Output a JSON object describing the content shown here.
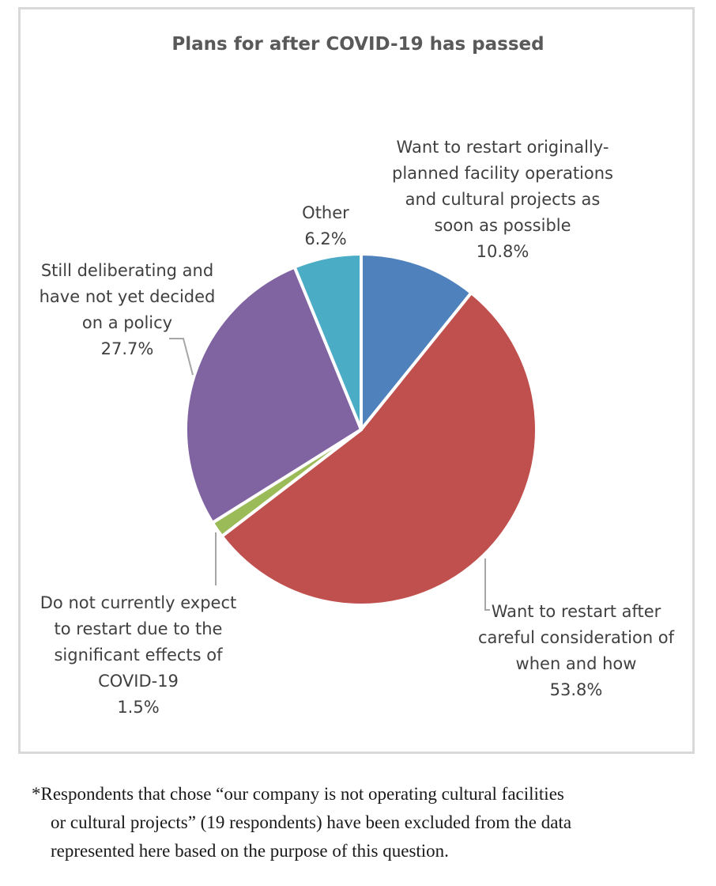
{
  "chart_data": {
    "type": "pie",
    "title": "Plans for after COVID-19 has passed",
    "slices": [
      {
        "label_lines": [
          "Want to restart originally-",
          "planned facility operations",
          "and cultural projects as",
          "soon as possible"
        ],
        "value_label": "10.8%",
        "value": 10.8,
        "color": "#4f81bd"
      },
      {
        "label_lines": [
          "Want to restart after",
          "careful consideration of",
          "when and how"
        ],
        "value_label": "53.8%",
        "value": 53.8,
        "color": "#c0504d"
      },
      {
        "label_lines": [
          "Do not currently expect",
          "to restart due to the",
          "significant effects of",
          "COVID-19"
        ],
        "value_label": "1.5%",
        "value": 1.5,
        "color": "#9bbb59"
      },
      {
        "label_lines": [
          "Still deliberating and",
          "have not yet decided",
          "on a policy"
        ],
        "value_label": "27.7%",
        "value": 27.7,
        "color": "#8064a2"
      },
      {
        "label_lines": [
          "Other"
        ],
        "value_label": "6.2%",
        "value": 6.2,
        "color": "#4bacc6"
      }
    ]
  },
  "footnote": {
    "lines": [
      "*Respondents that chose “our company is not operating cultural facilities",
      "or cultural projects” (19 respondents) have been excluded from the data",
      "represented here based on the purpose of this question."
    ]
  }
}
